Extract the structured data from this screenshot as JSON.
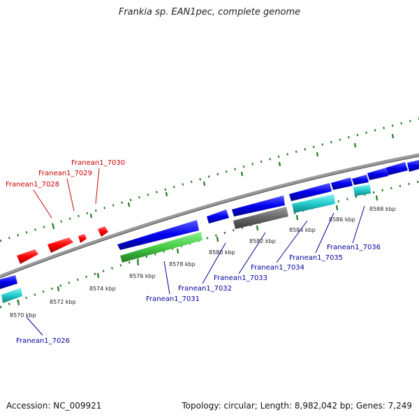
{
  "title": "Frankia sp. EAN1pec, complete genome",
  "footer": {
    "accession": "Accession: NC_009921",
    "summary": "Topology: circular; Length: 8,982,042 bp; Genes: 7,249"
  },
  "colors": {
    "forward_cds": "#ff0000",
    "reverse_cds": "#0000ee",
    "rna": "#22cccc",
    "pseudo": "#666666",
    "highlight": "#44cc44",
    "tick": "#1f7a1f",
    "label_forward": "#cc0000",
    "label_reverse": "#000099"
  },
  "ticks": [
    "8570 kbp",
    "8572 kbp",
    "8574 kbp",
    "8576 kbp",
    "8578 kbp",
    "8580 kbp",
    "8582 kbp",
    "8584 kbp",
    "8586 kbp",
    "8588 kbp"
  ],
  "gene_labels": [
    {
      "text": "Franean1_7028",
      "strand": "forward"
    },
    {
      "text": "Franean1_7029",
      "strand": "forward"
    },
    {
      "text": "Franean1_7030",
      "strand": "forward"
    },
    {
      "text": "Franean1_7026",
      "strand": "reverse"
    },
    {
      "text": "Franean1_7031",
      "strand": "reverse"
    },
    {
      "text": "Franean1_7032",
      "strand": "reverse"
    },
    {
      "text": "Franean1_7033",
      "strand": "reverse"
    },
    {
      "text": "Franean1_7034",
      "strand": "reverse"
    },
    {
      "text": "Franean1_7035",
      "strand": "reverse"
    },
    {
      "text": "Franean1_7036",
      "strand": "reverse"
    }
  ]
}
